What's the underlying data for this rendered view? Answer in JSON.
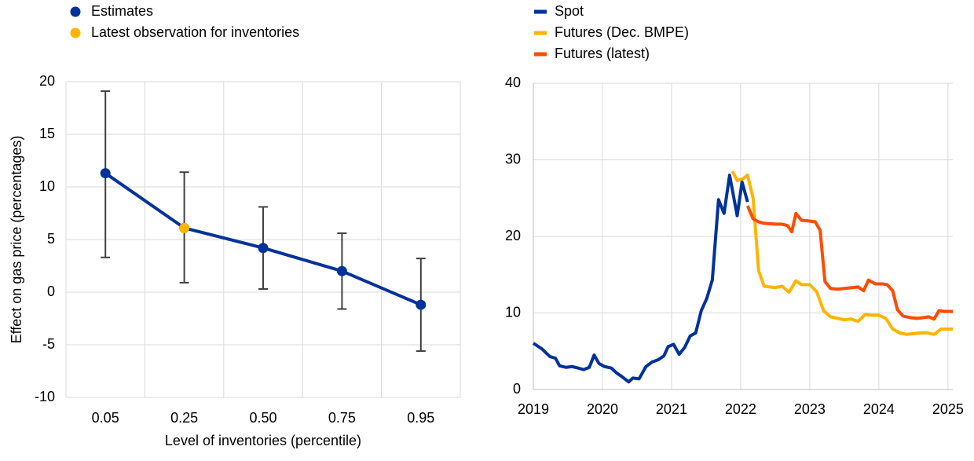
{
  "chart_data": [
    {
      "type": "line",
      "xlabel": "Level of inventories (percentile)",
      "ylabel": "Effect on gas price (percentages)",
      "categories": [
        "0.05",
        "0.25",
        "0.50",
        "0.75",
        "0.95"
      ],
      "series": [
        {
          "name": "Estimates",
          "color": "#003299",
          "show_line": true,
          "values": [
            11.3,
            6.1,
            4.2,
            2.0,
            -1.2
          ],
          "lower": [
            3.3,
            0.9,
            0.3,
            -1.6,
            -5.6
          ],
          "upper": [
            19.1,
            11.4,
            8.1,
            5.6,
            3.2
          ]
        },
        {
          "name": "Latest observation for inventories",
          "color": "#FFB400",
          "show_line": false,
          "values": [
            null,
            6.1,
            null,
            null,
            null
          ]
        }
      ],
      "error_color": "#404040",
      "ylim": [
        -10,
        20
      ],
      "yticks": [
        -10,
        -5,
        0,
        5,
        10,
        15,
        20
      ],
      "grid": true
    },
    {
      "type": "line",
      "xlim": [
        2019,
        2025.07
      ],
      "xticks": [
        2019,
        2020,
        2021,
        2022,
        2023,
        2024,
        2025
      ],
      "ylim": [
        0,
        40
      ],
      "yticks": [
        0,
        10,
        20,
        30,
        40
      ],
      "grid": true,
      "series": [
        {
          "name": "Spot",
          "color": "#003299",
          "x": [
            2019.0,
            2019.125,
            2019.24,
            2019.32,
            2019.38,
            2019.47,
            2019.56,
            2019.65,
            2019.73,
            2019.81,
            2019.88,
            2019.95,
            2020.03,
            2020.13,
            2020.2,
            2020.28,
            2020.38,
            2020.44,
            2020.53,
            2020.63,
            2020.72,
            2020.81,
            2020.89,
            2020.95,
            2021.03,
            2021.11,
            2021.19,
            2021.27,
            2021.35,
            2021.43,
            2021.51,
            2021.59,
            2021.68,
            2021.76,
            2021.84,
            2021.95,
            2022.02,
            2022.1
          ],
          "values": [
            6.05,
            5.3,
            4.3,
            4.1,
            3.1,
            2.9,
            3.0,
            2.8,
            2.6,
            2.9,
            4.5,
            3.4,
            3.0,
            2.8,
            2.2,
            1.7,
            1.0,
            1.5,
            1.4,
            3.0,
            3.6,
            3.9,
            4.4,
            5.6,
            5.9,
            4.6,
            5.5,
            7.0,
            7.4,
            10.3,
            11.9,
            14.3,
            24.8,
            23.0,
            28.0,
            22.7,
            27.1,
            24.5
          ]
        },
        {
          "name": "Futures (Dec. BMPE)",
          "color": "#FFB400",
          "x": [
            2021.88,
            2021.95,
            2022.03,
            2022.1,
            2022.18,
            2022.26,
            2022.34,
            2022.42,
            2022.5,
            2022.6,
            2022.7,
            2022.8,
            2022.88,
            2023.0,
            2023.1,
            2023.2,
            2023.3,
            2023.4,
            2023.5,
            2023.6,
            2023.7,
            2023.8,
            2023.9,
            2024.0,
            2024.1,
            2024.2,
            2024.3,
            2024.4,
            2024.5,
            2024.6,
            2024.7,
            2024.8,
            2024.9,
            2025.0,
            2025.07
          ],
          "values": [
            28.5,
            27.3,
            27.5,
            28.0,
            25.0,
            15.5,
            13.5,
            13.4,
            13.3,
            13.5,
            12.7,
            14.2,
            13.7,
            13.7,
            12.8,
            10.3,
            9.5,
            9.3,
            9.1,
            9.2,
            8.9,
            9.8,
            9.7,
            9.7,
            9.3,
            7.9,
            7.4,
            7.2,
            7.3,
            7.4,
            7.4,
            7.2,
            7.9,
            7.9,
            7.9
          ]
        },
        {
          "name": "Futures (latest)",
          "color": "#FF4B00",
          "x": [
            2022.1,
            2022.18,
            2022.26,
            2022.34,
            2022.5,
            2022.6,
            2022.68,
            2022.74,
            2022.8,
            2022.88,
            2023.0,
            2023.08,
            2023.15,
            2023.22,
            2023.3,
            2023.4,
            2023.5,
            2023.6,
            2023.7,
            2023.78,
            2023.85,
            2023.95,
            2024.05,
            2024.12,
            2024.2,
            2024.27,
            2024.35,
            2024.45,
            2024.55,
            2024.65,
            2024.72,
            2024.8,
            2024.87,
            2024.95,
            2025.07
          ],
          "values": [
            24.0,
            22.3,
            21.9,
            21.7,
            21.6,
            21.6,
            21.4,
            20.6,
            23.0,
            22.1,
            22.0,
            21.9,
            20.8,
            14.1,
            13.2,
            13.1,
            13.2,
            13.3,
            13.4,
            12.9,
            14.3,
            13.8,
            13.8,
            13.7,
            12.9,
            10.4,
            9.6,
            9.4,
            9.3,
            9.4,
            9.5,
            9.2,
            10.3,
            10.2,
            10.2
          ]
        }
      ]
    }
  ]
}
